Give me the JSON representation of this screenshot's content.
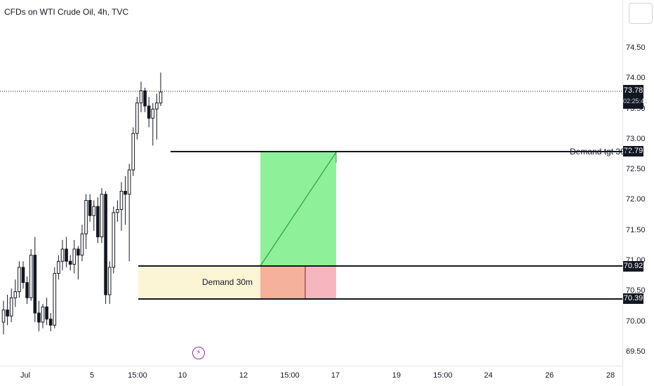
{
  "header": {
    "title": "CFDs on WTI Crude Oil, 4h, TVC"
  },
  "chart_data": {
    "type": "candlestick",
    "title": "CFDs on WTI Crude Oil, 4h, TVC",
    "ylim": [
      69.3,
      75.0
    ],
    "y_ticks": [
      "74.50",
      "74.00",
      "73.50",
      "73.00",
      "72.50",
      "72.00",
      "71.50",
      "71.00",
      "70.50",
      "70.00",
      "69.50"
    ],
    "x_ticks": [
      "Jul",
      "5",
      "15:00",
      "10",
      "12",
      "15:00",
      "17",
      "19",
      "15:00",
      "24",
      "26",
      "28"
    ],
    "current_price": "73.78",
    "countdown": "02:25:41",
    "price_labels": [
      "72.79",
      "70.92",
      "70.39"
    ],
    "annotations": {
      "demand_zone": {
        "label": "Demand 30m",
        "top": 70.92,
        "bottom": 70.39
      },
      "target_line": {
        "label": "Demand tgt 30m",
        "price": 72.79
      },
      "long_position": {
        "entry": 70.92,
        "target": 72.79,
        "stop": 70.39
      }
    },
    "candles": [
      {
        "o": 70.0,
        "h": 70.35,
        "l": 69.8,
        "c": 70.2
      },
      {
        "o": 70.2,
        "h": 70.45,
        "l": 69.95,
        "c": 70.1
      },
      {
        "o": 70.1,
        "h": 70.55,
        "l": 70.0,
        "c": 70.4
      },
      {
        "o": 70.4,
        "h": 70.7,
        "l": 70.25,
        "c": 70.5
      },
      {
        "o": 70.5,
        "h": 71.0,
        "l": 70.4,
        "c": 70.9
      },
      {
        "o": 70.9,
        "h": 71.0,
        "l": 70.55,
        "c": 70.65
      },
      {
        "o": 70.65,
        "h": 70.75,
        "l": 70.3,
        "c": 70.4
      },
      {
        "o": 70.4,
        "h": 71.2,
        "l": 70.35,
        "c": 71.1
      },
      {
        "o": 71.1,
        "h": 71.4,
        "l": 70.0,
        "c": 70.15
      },
      {
        "o": 70.15,
        "h": 70.35,
        "l": 69.85,
        "c": 70.0
      },
      {
        "o": 70.0,
        "h": 70.3,
        "l": 69.9,
        "c": 70.25
      },
      {
        "o": 70.25,
        "h": 70.4,
        "l": 69.95,
        "c": 70.05
      },
      {
        "o": 70.05,
        "h": 70.15,
        "l": 69.85,
        "c": 69.95
      },
      {
        "o": 69.95,
        "h": 70.9,
        "l": 69.9,
        "c": 70.8
      },
      {
        "o": 70.8,
        "h": 71.1,
        "l": 70.7,
        "c": 71.0
      },
      {
        "o": 71.0,
        "h": 71.35,
        "l": 70.85,
        "c": 71.2
      },
      {
        "o": 71.2,
        "h": 71.4,
        "l": 70.9,
        "c": 71.0
      },
      {
        "o": 71.0,
        "h": 71.1,
        "l": 70.85,
        "c": 70.95
      },
      {
        "o": 70.95,
        "h": 71.35,
        "l": 70.8,
        "c": 71.2
      },
      {
        "o": 71.2,
        "h": 71.25,
        "l": 70.7,
        "c": 71.1
      },
      {
        "o": 71.1,
        "h": 71.6,
        "l": 71.0,
        "c": 71.45
      },
      {
        "o": 71.45,
        "h": 72.1,
        "l": 71.2,
        "c": 72.0
      },
      {
        "o": 72.0,
        "h": 72.1,
        "l": 71.65,
        "c": 71.75
      },
      {
        "o": 71.75,
        "h": 72.0,
        "l": 71.5,
        "c": 71.9
      },
      {
        "o": 71.9,
        "h": 72.05,
        "l": 71.3,
        "c": 71.4
      },
      {
        "o": 71.4,
        "h": 72.2,
        "l": 71.3,
        "c": 72.1
      },
      {
        "o": 72.1,
        "h": 72.15,
        "l": 70.3,
        "c": 70.45
      },
      {
        "o": 70.45,
        "h": 71.0,
        "l": 70.3,
        "c": 70.9
      },
      {
        "o": 70.9,
        "h": 71.9,
        "l": 70.8,
        "c": 71.8
      },
      {
        "o": 71.8,
        "h": 72.0,
        "l": 71.65,
        "c": 71.85
      },
      {
        "o": 71.85,
        "h": 72.3,
        "l": 71.5,
        "c": 72.15
      },
      {
        "o": 72.15,
        "h": 72.4,
        "l": 71.6,
        "c": 72.1
      },
      {
        "o": 72.1,
        "h": 72.6,
        "l": 71.0,
        "c": 72.5
      },
      {
        "o": 72.5,
        "h": 73.2,
        "l": 72.4,
        "c": 73.1
      },
      {
        "o": 73.1,
        "h": 73.7,
        "l": 73.0,
        "c": 73.6
      },
      {
        "o": 73.6,
        "h": 73.95,
        "l": 73.45,
        "c": 73.8
      },
      {
        "o": 73.8,
        "h": 73.85,
        "l": 73.45,
        "c": 73.55
      },
      {
        "o": 73.55,
        "h": 73.7,
        "l": 73.2,
        "c": 73.35
      },
      {
        "o": 73.35,
        "h": 73.6,
        "l": 72.9,
        "c": 73.5
      },
      {
        "o": 73.5,
        "h": 73.75,
        "l": 73.0,
        "c": 73.6
      },
      {
        "o": 73.6,
        "h": 74.1,
        "l": 73.55,
        "c": 73.78
      }
    ]
  }
}
